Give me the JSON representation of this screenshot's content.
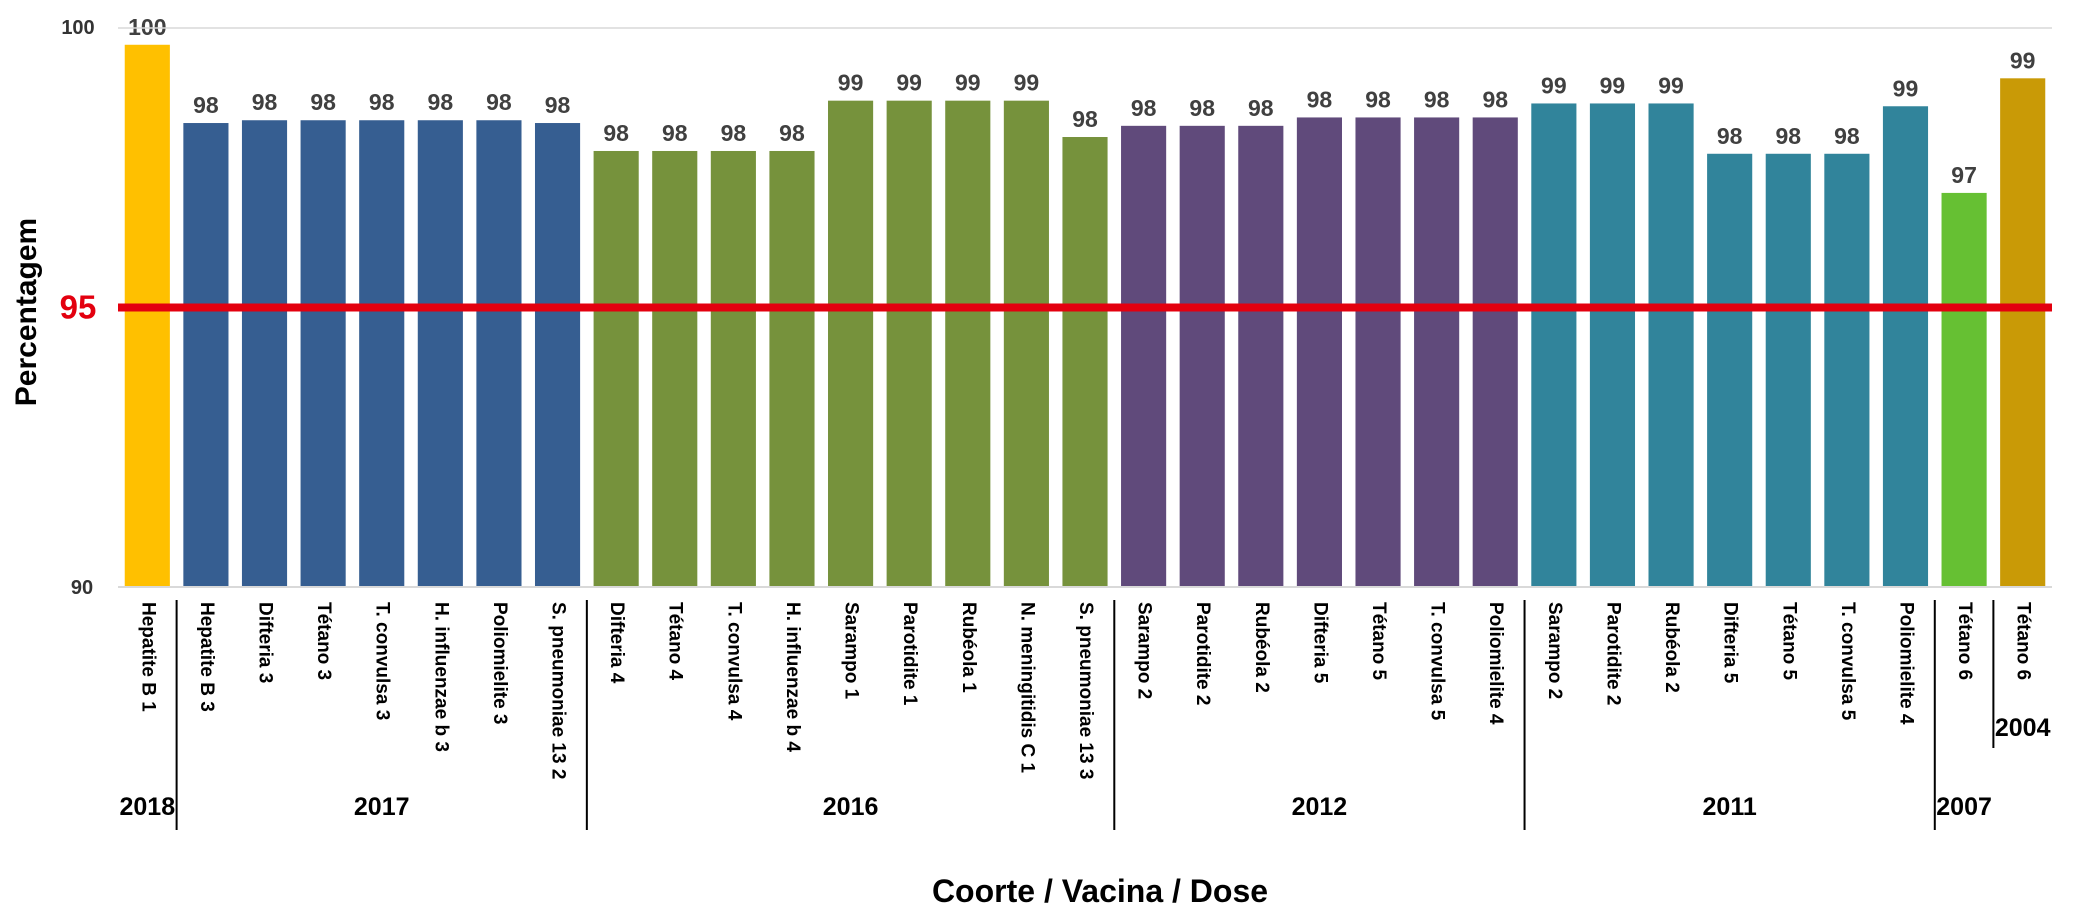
{
  "chart_data": {
    "type": "bar",
    "xlabel": "Coorte / Vacina / Dose",
    "ylabel": "Percentagem",
    "ylim": [
      90,
      100
    ],
    "yticks": [
      "90",
      "100"
    ],
    "grid": false,
    "reference_line": {
      "value": 95,
      "label": "95",
      "color": "#e3000f"
    },
    "bars": [
      {
        "label": "Hepatite B 1",
        "value": 99.7,
        "value_label": "100",
        "color": "#ffc000",
        "cohort": "2018"
      },
      {
        "label": "Hepatite B 3",
        "value": 98.3,
        "value_label": "98",
        "color": "#365e91",
        "cohort": "2017"
      },
      {
        "label": "Difteria 3",
        "value": 98.35,
        "value_label": "98",
        "color": "#365e91",
        "cohort": "2017"
      },
      {
        "label": "Tétano 3",
        "value": 98.35,
        "value_label": "98",
        "color": "#365e91",
        "cohort": "2017"
      },
      {
        "label": "T. convulsa 3",
        "value": 98.35,
        "value_label": "98",
        "color": "#365e91",
        "cohort": "2017"
      },
      {
        "label": "H. influenzae b 3",
        "value": 98.35,
        "value_label": "98",
        "color": "#365e91",
        "cohort": "2017"
      },
      {
        "label": "Poliomielite 3",
        "value": 98.35,
        "value_label": "98",
        "color": "#365e91",
        "cohort": "2017"
      },
      {
        "label": "S. pneumoniae 13  2",
        "value": 98.3,
        "value_label": "98",
        "color": "#365e91",
        "cohort": "2017"
      },
      {
        "label": "Difteria 4",
        "value": 97.8,
        "value_label": "98",
        "color": "#76923c",
        "cohort": "2016"
      },
      {
        "label": "Tétano 4",
        "value": 97.8,
        "value_label": "98",
        "color": "#76923c",
        "cohort": "2016"
      },
      {
        "label": "T. convulsa 4",
        "value": 97.8,
        "value_label": "98",
        "color": "#76923c",
        "cohort": "2016"
      },
      {
        "label": "H. influenzae b 4",
        "value": 97.8,
        "value_label": "98",
        "color": "#76923c",
        "cohort": "2016"
      },
      {
        "label": "Sarampo 1",
        "value": 98.7,
        "value_label": "99",
        "color": "#76923c",
        "cohort": "2016"
      },
      {
        "label": "Parotidite 1",
        "value": 98.7,
        "value_label": "99",
        "color": "#76923c",
        "cohort": "2016"
      },
      {
        "label": "Rubéola 1",
        "value": 98.7,
        "value_label": "99",
        "color": "#76923c",
        "cohort": "2016"
      },
      {
        "label": "N. meningitidis C 1",
        "value": 98.7,
        "value_label": "99",
        "color": "#76923c",
        "cohort": "2016"
      },
      {
        "label": "S. pneumoniae 13  3",
        "value": 98.05,
        "value_label": "98",
        "color": "#76923c",
        "cohort": "2016"
      },
      {
        "label": "Sarampo 2",
        "value": 98.25,
        "value_label": "98",
        "color": "#604a7b",
        "cohort": "2012"
      },
      {
        "label": "Parotidite 2",
        "value": 98.25,
        "value_label": "98",
        "color": "#604a7b",
        "cohort": "2012"
      },
      {
        "label": "Rubéola 2",
        "value": 98.25,
        "value_label": "98",
        "color": "#604a7b",
        "cohort": "2012"
      },
      {
        "label": "Difteria 5",
        "value": 98.4,
        "value_label": "98",
        "color": "#604a7b",
        "cohort": "2012"
      },
      {
        "label": "Tétano 5",
        "value": 98.4,
        "value_label": "98",
        "color": "#604a7b",
        "cohort": "2012"
      },
      {
        "label": "T. convulsa 5",
        "value": 98.4,
        "value_label": "98",
        "color": "#604a7b",
        "cohort": "2012"
      },
      {
        "label": "Poliomielite 4",
        "value": 98.4,
        "value_label": "98",
        "color": "#604a7b",
        "cohort": "2012"
      },
      {
        "label": "Sarampo 2",
        "value": 98.65,
        "value_label": "99",
        "color": "#31849b",
        "cohort": "2011"
      },
      {
        "label": "Parotidite 2",
        "value": 98.65,
        "value_label": "99",
        "color": "#31849b",
        "cohort": "2011"
      },
      {
        "label": "Rubéola 2",
        "value": 98.65,
        "value_label": "99",
        "color": "#31849b",
        "cohort": "2011"
      },
      {
        "label": "Difteria 5",
        "value": 97.75,
        "value_label": "98",
        "color": "#31849b",
        "cohort": "2011"
      },
      {
        "label": "Tétano 5",
        "value": 97.75,
        "value_label": "98",
        "color": "#31849b",
        "cohort": "2011"
      },
      {
        "label": "T. convulsa  5",
        "value": 97.75,
        "value_label": "98",
        "color": "#31849b",
        "cohort": "2011"
      },
      {
        "label": "Poliomielite 4",
        "value": 98.6,
        "value_label": "99",
        "color": "#31849b",
        "cohort": "2011"
      },
      {
        "label": "Tétano 6",
        "value": 97.05,
        "value_label": "97",
        "color": "#66c033",
        "cohort": "2007"
      },
      {
        "label": "Tétano 6",
        "value": 99.1,
        "value_label": "99",
        "color": "#c99a06",
        "cohort": "2004"
      }
    ],
    "cohorts": [
      "2018",
      "2017",
      "2016",
      "2012",
      "2011",
      "2007",
      "2004"
    ]
  }
}
